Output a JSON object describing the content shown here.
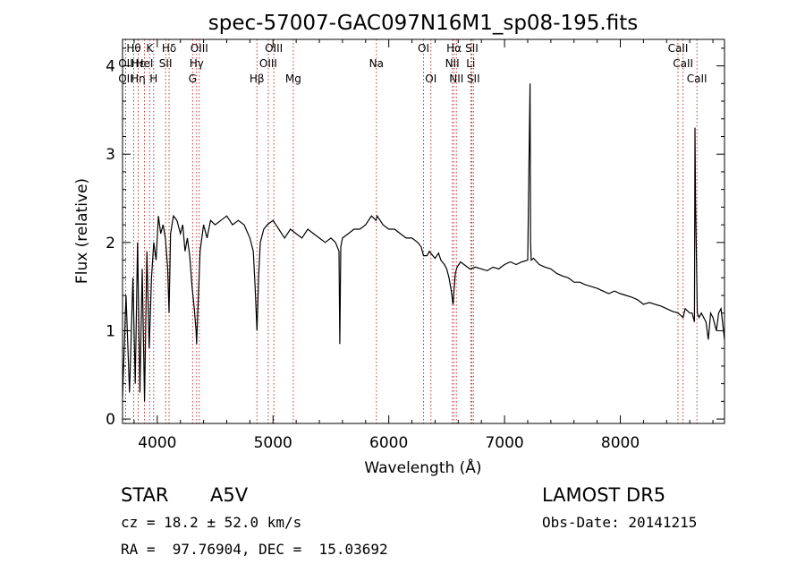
{
  "chart_data": {
    "type": "line",
    "title": "spec-57007-GAC097N16M1_sp08-195.fits",
    "xlabel": "Wavelength (Å)",
    "ylabel": "Flux (relative)",
    "xlim": [
      3700,
      8900
    ],
    "ylim": [
      -0.05,
      4.3
    ],
    "x_ticks": [
      4000,
      5000,
      6000,
      7000,
      8000
    ],
    "y_ticks": [
      0,
      1,
      2,
      3,
      4
    ],
    "series": [
      {
        "x": [
          3700,
          3730,
          3760,
          3790,
          3810,
          3830,
          3850,
          3870,
          3890,
          3910,
          3930,
          3950,
          3970,
          3990,
          4010,
          4030,
          4050,
          4070,
          4090,
          4102,
          4115,
          4140,
          4170,
          4200,
          4220,
          4240,
          4260,
          4280,
          4300,
          4320,
          4335,
          4340,
          4350,
          4370,
          4400,
          4430,
          4460,
          4500,
          4550,
          4600,
          4650,
          4700,
          4750,
          4800,
          4830,
          4845,
          4861,
          4875,
          4890,
          4920,
          4950,
          5000,
          5050,
          5100,
          5150,
          5200,
          5250,
          5300,
          5350,
          5400,
          5450,
          5500,
          5540,
          5570,
          5577,
          5585,
          5600,
          5650,
          5700,
          5750,
          5800,
          5850,
          5890,
          5900,
          5950,
          6000,
          6050,
          6100,
          6150,
          6200,
          6250,
          6280,
          6300,
          6330,
          6350,
          6380,
          6400,
          6430,
          6450,
          6480,
          6500,
          6520,
          6540,
          6555,
          6563,
          6575,
          6590,
          6620,
          6650,
          6700,
          6750,
          6800,
          6850,
          6900,
          6950,
          7000,
          7050,
          7100,
          7150,
          7200,
          7220,
          7225,
          7230,
          7250,
          7300,
          7350,
          7400,
          7450,
          7500,
          7550,
          7600,
          7650,
          7700,
          7750,
          7800,
          7850,
          7900,
          7950,
          8000,
          8050,
          8100,
          8150,
          8200,
          8250,
          8300,
          8350,
          8400,
          8450,
          8500,
          8542,
          8560,
          8600,
          8620,
          8640,
          8645,
          8650,
          8665,
          8680,
          8700,
          8740,
          8760,
          8780,
          8800,
          8830,
          8850,
          8870,
          8900
        ],
        "y": [
          0.25,
          1.4,
          0.3,
          1.6,
          0.4,
          2.0,
          0.3,
          1.7,
          0.2,
          1.9,
          0.8,
          1.6,
          2.0,
          1.8,
          2.3,
          2.1,
          2.2,
          2.05,
          1.7,
          1.2,
          2.1,
          2.3,
          2.25,
          2.1,
          2.2,
          1.9,
          2.05,
          1.85,
          1.5,
          1.25,
          1.0,
          0.85,
          1.2,
          1.9,
          2.2,
          2.05,
          2.25,
          2.2,
          2.25,
          2.3,
          2.2,
          2.25,
          2.2,
          2.05,
          1.9,
          1.5,
          1.0,
          1.6,
          2.0,
          2.15,
          2.2,
          2.25,
          2.15,
          2.05,
          2.15,
          2.1,
          2.05,
          2.15,
          2.1,
          2.05,
          2.0,
          2.05,
          2.0,
          1.9,
          0.85,
          1.95,
          2.05,
          2.1,
          2.15,
          2.15,
          2.2,
          2.3,
          2.25,
          2.3,
          2.2,
          2.15,
          2.15,
          2.1,
          2.05,
          2.05,
          2.0,
          1.95,
          1.85,
          1.85,
          1.9,
          1.85,
          1.82,
          1.88,
          1.8,
          1.75,
          1.7,
          1.6,
          1.45,
          1.3,
          1.45,
          1.65,
          1.72,
          1.78,
          1.75,
          1.7,
          1.72,
          1.7,
          1.68,
          1.72,
          1.7,
          1.75,
          1.78,
          1.75,
          1.78,
          1.8,
          3.8,
          2.0,
          1.8,
          1.82,
          1.75,
          1.72,
          1.7,
          1.65,
          1.62,
          1.6,
          1.55,
          1.55,
          1.52,
          1.5,
          1.48,
          1.45,
          1.42,
          1.45,
          1.42,
          1.4,
          1.38,
          1.35,
          1.3,
          1.32,
          1.3,
          1.28,
          1.25,
          1.22,
          1.2,
          1.15,
          1.25,
          1.2,
          1.2,
          1.1,
          3.3,
          2.5,
          1.2,
          1.15,
          1.2,
          1.1,
          0.9,
          1.2,
          1.15,
          1.0,
          1.2,
          1.25,
          0.9
        ]
      }
    ],
    "line_markers": [
      {
        "name": "Hθ",
        "x": 3797,
        "row": 0
      },
      {
        "name": "OII",
        "x": 3727,
        "row": 1
      },
      {
        "name": "OII",
        "x": 3727,
        "row": 2
      },
      {
        "name": "Hε",
        "x": 3835,
        "row": 1
      },
      {
        "name": "Hη",
        "x": 3835,
        "row": 2
      },
      {
        "name": "K",
        "x": 3934,
        "row": 0
      },
      {
        "name": "HeI",
        "x": 3889,
        "row": 1
      },
      {
        "name": "H",
        "x": 3969,
        "row": 2
      },
      {
        "name": "Hδ",
        "x": 4102,
        "row": 0
      },
      {
        "name": "SII",
        "x": 4072,
        "row": 1
      },
      {
        "name": "OIII",
        "x": 4363,
        "row": 0
      },
      {
        "name": "Hγ",
        "x": 4340,
        "row": 1
      },
      {
        "name": "G",
        "x": 4305,
        "row": 2
      },
      {
        "name": "OIII",
        "x": 5007,
        "row": 0
      },
      {
        "name": "OIII",
        "x": 4959,
        "row": 1
      },
      {
        "name": "Hβ",
        "x": 4861,
        "row": 2
      },
      {
        "name": "Mg",
        "x": 5175,
        "row": 2
      },
      {
        "name": "Na",
        "x": 5893,
        "row": 1
      },
      {
        "name": "OI",
        "x": 6300,
        "row": 0
      },
      {
        "name": "OI",
        "x": 6364,
        "row": 2
      },
      {
        "name": "Hα",
        "x": 6563,
        "row": 0
      },
      {
        "name": "SII",
        "x": 6717,
        "row": 0
      },
      {
        "name": "NII",
        "x": 6548,
        "row": 1
      },
      {
        "name": "Li",
        "x": 6708,
        "row": 1
      },
      {
        "name": "NII",
        "x": 6584,
        "row": 2
      },
      {
        "name": "SII",
        "x": 6731,
        "row": 2
      },
      {
        "name": "CaII",
        "x": 8498,
        "row": 0
      },
      {
        "name": "CaII",
        "x": 8542,
        "row": 1
      },
      {
        "name": "CaII",
        "x": 8662,
        "row": 2
      }
    ]
  },
  "info": {
    "object_class": "STAR",
    "subclass": "A5V",
    "survey": "LAMOST DR5",
    "redshift": "cz = 18.2 ± 52.0 km/s",
    "obs_date": "Obs-Date: 20141215",
    "coords": "RA =  97.76904, DEC =  15.03692"
  },
  "colors": {
    "spectrum": "#000000",
    "marker_line": "#b22222",
    "axis": "#000000"
  }
}
